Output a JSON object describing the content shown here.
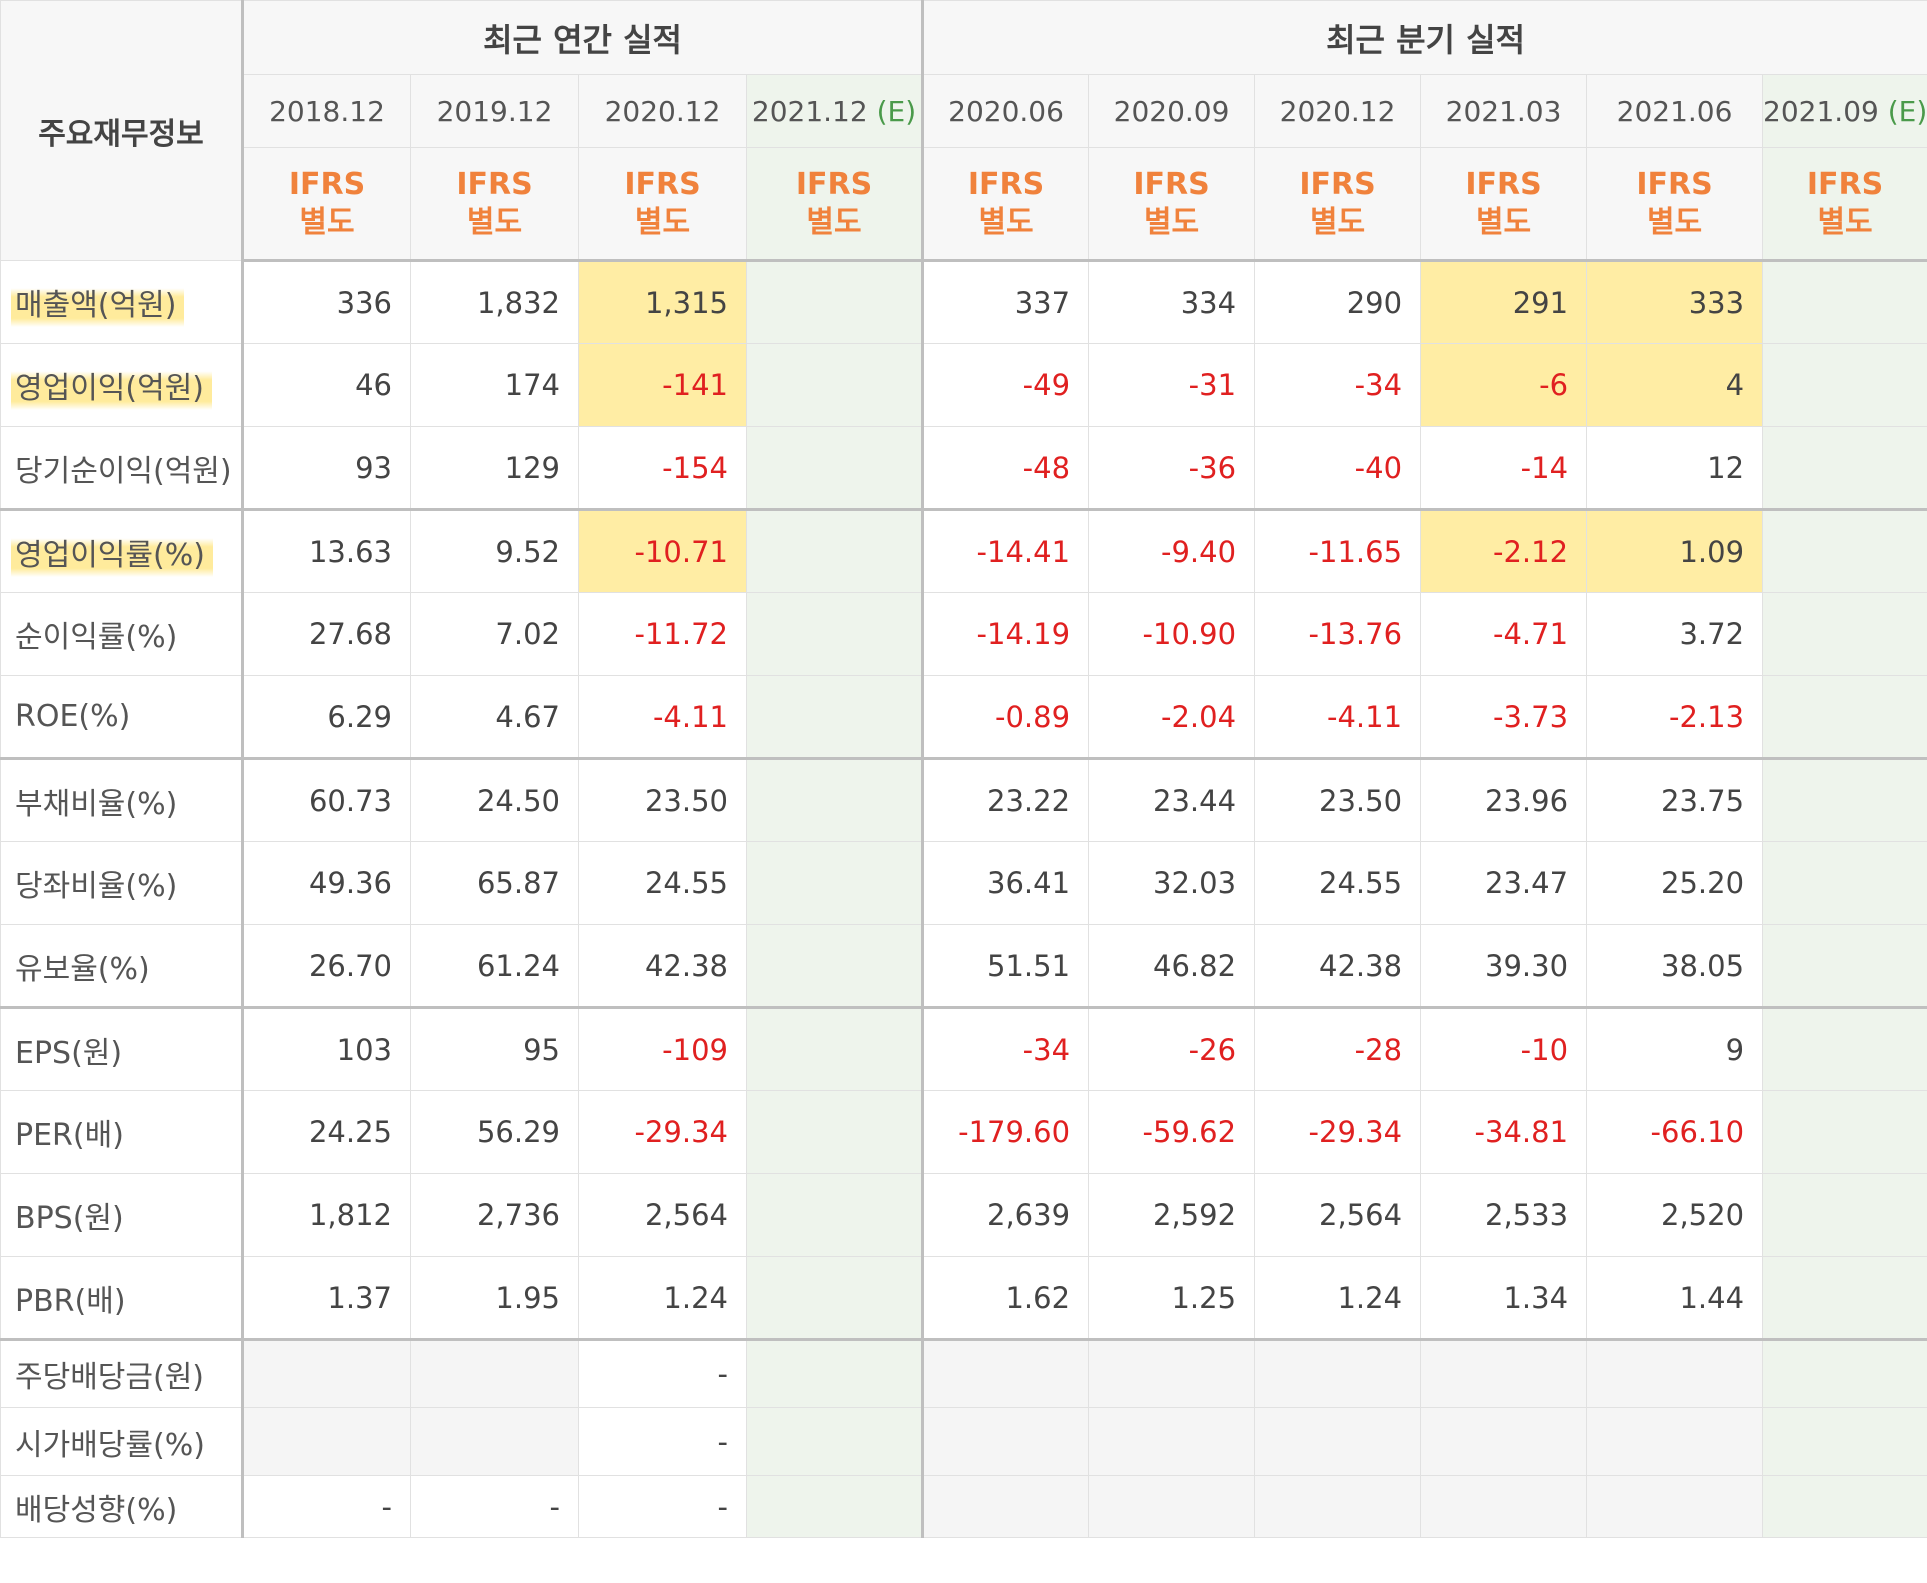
{
  "table": {
    "corner_label": "주요재무정보",
    "group_annual": "최근 연간 실적",
    "group_quarter": "최근 분기 실적",
    "columns": [
      {
        "date": "2018.12",
        "est": "",
        "std1": "IFRS",
        "std2": "별도"
      },
      {
        "date": "2019.12",
        "est": "",
        "std1": "IFRS",
        "std2": "별도"
      },
      {
        "date": "2020.12",
        "est": "",
        "std1": "IFRS",
        "std2": "별도"
      },
      {
        "date": "2021.12",
        "est": "(E)",
        "std1": "IFRS",
        "std2": "별도"
      },
      {
        "date": "2020.06",
        "est": "",
        "std1": "IFRS",
        "std2": "별도"
      },
      {
        "date": "2020.09",
        "est": "",
        "std1": "IFRS",
        "std2": "별도"
      },
      {
        "date": "2020.12",
        "est": "",
        "std1": "IFRS",
        "std2": "별도"
      },
      {
        "date": "2021.03",
        "est": "",
        "std1": "IFRS",
        "std2": "별도"
      },
      {
        "date": "2021.06",
        "est": "",
        "std1": "IFRS",
        "std2": "별도"
      },
      {
        "date": "2021.09",
        "est": "(E)",
        "std1": "IFRS",
        "std2": "별도"
      }
    ],
    "rows": [
      {
        "label": "매출액(억원)",
        "values": [
          "336",
          "1,832",
          "1,315",
          "",
          "337",
          "334",
          "290",
          "291",
          "333",
          ""
        ]
      },
      {
        "label": "영업이익(억원)",
        "values": [
          "46",
          "174",
          "-141",
          "",
          "-49",
          "-31",
          "-34",
          "-6",
          "4",
          ""
        ]
      },
      {
        "label": "당기순이익(억원)",
        "values": [
          "93",
          "129",
          "-154",
          "",
          "-48",
          "-36",
          "-40",
          "-14",
          "12",
          ""
        ]
      },
      {
        "label": "영업이익률(%)",
        "values": [
          "13.63",
          "9.52",
          "-10.71",
          "",
          "-14.41",
          "-9.40",
          "-11.65",
          "-2.12",
          "1.09",
          ""
        ]
      },
      {
        "label": "순이익률(%)",
        "values": [
          "27.68",
          "7.02",
          "-11.72",
          "",
          "-14.19",
          "-10.90",
          "-13.76",
          "-4.71",
          "3.72",
          ""
        ]
      },
      {
        "label": "ROE(%)",
        "values": [
          "6.29",
          "4.67",
          "-4.11",
          "",
          "-0.89",
          "-2.04",
          "-4.11",
          "-3.73",
          "-2.13",
          ""
        ]
      },
      {
        "label": "부채비율(%)",
        "values": [
          "60.73",
          "24.50",
          "23.50",
          "",
          "23.22",
          "23.44",
          "23.50",
          "23.96",
          "23.75",
          ""
        ]
      },
      {
        "label": "당좌비율(%)",
        "values": [
          "49.36",
          "65.87",
          "24.55",
          "",
          "36.41",
          "32.03",
          "24.55",
          "23.47",
          "25.20",
          ""
        ]
      },
      {
        "label": "유보율(%)",
        "values": [
          "26.70",
          "61.24",
          "42.38",
          "",
          "51.51",
          "46.82",
          "42.38",
          "39.30",
          "38.05",
          ""
        ]
      },
      {
        "label": "EPS(원)",
        "values": [
          "103",
          "95",
          "-109",
          "",
          "-34",
          "-26",
          "-28",
          "-10",
          "9",
          ""
        ]
      },
      {
        "label": "PER(배)",
        "values": [
          "24.25",
          "56.29",
          "-29.34",
          "",
          "-179.60",
          "-59.62",
          "-29.34",
          "-34.81",
          "-66.10",
          ""
        ]
      },
      {
        "label": "BPS(원)",
        "values": [
          "1,812",
          "2,736",
          "2,564",
          "",
          "2,639",
          "2,592",
          "2,564",
          "2,533",
          "2,520",
          ""
        ]
      },
      {
        "label": "PBR(배)",
        "values": [
          "1.37",
          "1.95",
          "1.24",
          "",
          "1.62",
          "1.25",
          "1.24",
          "1.34",
          "1.44",
          ""
        ]
      },
      {
        "label": "주당배당금(원)",
        "values": [
          "",
          "",
          "-",
          "",
          "",
          "",
          "",
          "",
          "",
          ""
        ]
      },
      {
        "label": "시가배당률(%)",
        "values": [
          "",
          "",
          "-",
          "",
          "",
          "",
          "",
          "",
          "",
          ""
        ]
      },
      {
        "label": "배당성향(%)",
        "values": [
          "-",
          "-",
          "-",
          "",
          "",
          "",
          "",
          "",
          "",
          ""
        ]
      }
    ]
  },
  "colors": {
    "negative": "#e02020",
    "ifrs": "#f0823c",
    "estimate_bg": "#eef4ec",
    "highlight": "#ffde5a"
  }
}
